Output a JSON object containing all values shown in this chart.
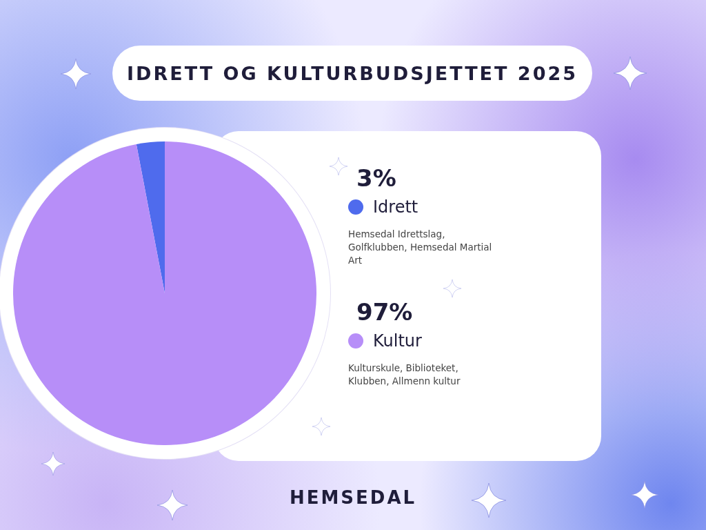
{
  "chart_data": {
    "type": "pie",
    "title": "IDRETT OG KULTURBUDSJETTET 2025",
    "categories": [
      "Idrett",
      "Kultur"
    ],
    "values": [
      3,
      97
    ],
    "value_labels": [
      "3%",
      "97%"
    ],
    "colors": [
      "#4f6bed",
      "#b78ef8"
    ],
    "legend": "right",
    "annotations": [
      "Hemsedal Idrettslag, Golfklubben, Hemsedal Martial Art",
      "Kulturskule, Biblioteket, Klubben, Allmenn kultur",
      "HEMSEDAL"
    ]
  }
}
